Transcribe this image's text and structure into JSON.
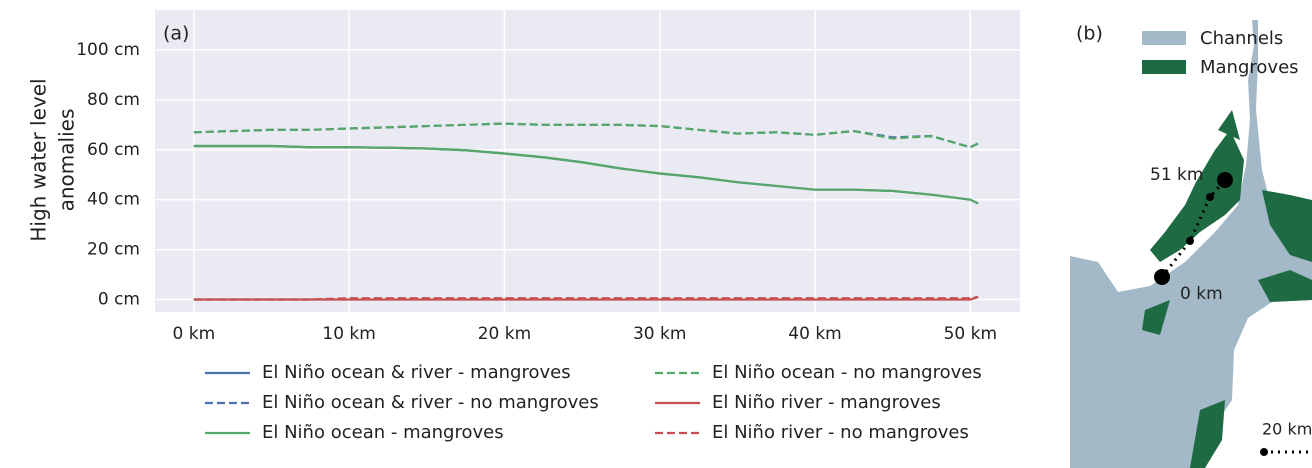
{
  "chart_data": {
    "type": "line",
    "panel_label": "(a)",
    "ylabel": [
      "High water level",
      "anomalies"
    ],
    "x": [
      0,
      2.5,
      5,
      7.5,
      10,
      12.5,
      15,
      17.5,
      20,
      22.5,
      25,
      27.5,
      30,
      32.5,
      35,
      37.5,
      40,
      42.5,
      45,
      47.5,
      50,
      50.5
    ],
    "series": [
      {
        "name": "El Niño ocean & river - mangroves",
        "color": "#4c72b0",
        "dash": false,
        "values": [
          61.5,
          61.5,
          61.5,
          61,
          61,
          60.8,
          60.5,
          59.8,
          58.5,
          57,
          55,
          52.5,
          50.5,
          49,
          47,
          45.5,
          44,
          44,
          43.5,
          42,
          40,
          38.5
        ]
      },
      {
        "name": "El Niño ocean & river - no mangroves",
        "color": "#4c72b0",
        "dash": true,
        "values": [
          67,
          67.5,
          68,
          68,
          68.5,
          69,
          69.5,
          70,
          70.5,
          70,
          70,
          70,
          69.5,
          68,
          66.5,
          67,
          66,
          67.5,
          65,
          65.5,
          61,
          62.5
        ]
      },
      {
        "name": "El Niño ocean - mangroves",
        "color": "#55a868",
        "dash": false,
        "values": [
          61.5,
          61.5,
          61.5,
          61,
          61,
          60.8,
          60.5,
          59.8,
          58.5,
          57,
          55,
          52.5,
          50.5,
          49,
          47,
          45.5,
          44,
          44,
          43.5,
          42,
          40,
          38.5
        ]
      },
      {
        "name": "El Niño ocean - no mangroves",
        "color": "#55a868",
        "dash": true,
        "values": [
          67,
          67.5,
          68,
          68,
          68.5,
          69,
          69.5,
          70,
          70.5,
          70,
          70,
          70,
          69.5,
          68,
          66.5,
          67,
          66,
          67.5,
          64.5,
          65.5,
          61,
          62.5
        ]
      },
      {
        "name": "El Niño river - mangroves",
        "color": "#c44e52",
        "dash": false,
        "values": [
          0,
          0,
          0,
          0,
          0,
          0,
          0,
          0,
          0,
          0,
          0,
          0,
          0,
          0,
          0,
          0,
          0,
          0,
          0,
          0,
          0,
          1
        ]
      },
      {
        "name": "El Niño river - no mangroves",
        "color": "#c44e52",
        "dash": true,
        "values": [
          0,
          0,
          0,
          0,
          0.5,
          0.5,
          0.5,
          0.5,
          0.5,
          0.5,
          0.5,
          0.5,
          0.5,
          0.5,
          0.5,
          0.5,
          0.5,
          0.5,
          0.5,
          0.5,
          0.5,
          1
        ]
      }
    ],
    "xlim": [
      -2.5,
      53.2
    ],
    "ylim": [
      -5,
      116
    ],
    "xticks": [
      {
        "value": 0,
        "label": "0 km"
      },
      {
        "value": 10,
        "label": "10 km"
      },
      {
        "value": 20,
        "label": "20 km"
      },
      {
        "value": 30,
        "label": "30 km"
      },
      {
        "value": 40,
        "label": "40 km"
      },
      {
        "value": 50,
        "label": "50 km"
      }
    ],
    "yticks": [
      {
        "value": 0,
        "label": "0 cm"
      },
      {
        "value": 20,
        "label": "20 cm"
      },
      {
        "value": 40,
        "label": "40 cm"
      },
      {
        "value": 60,
        "label": "60 cm"
      },
      {
        "value": 80,
        "label": "80 cm"
      },
      {
        "value": 100,
        "label": "100 cm"
      }
    ],
    "grid": true,
    "background": "#eaeaf2"
  },
  "map": {
    "panel_label": "(b)",
    "legend": [
      "Channels",
      "Mangroves"
    ],
    "start": "0 km",
    "end": "51 km",
    "scale": "20 km"
  }
}
